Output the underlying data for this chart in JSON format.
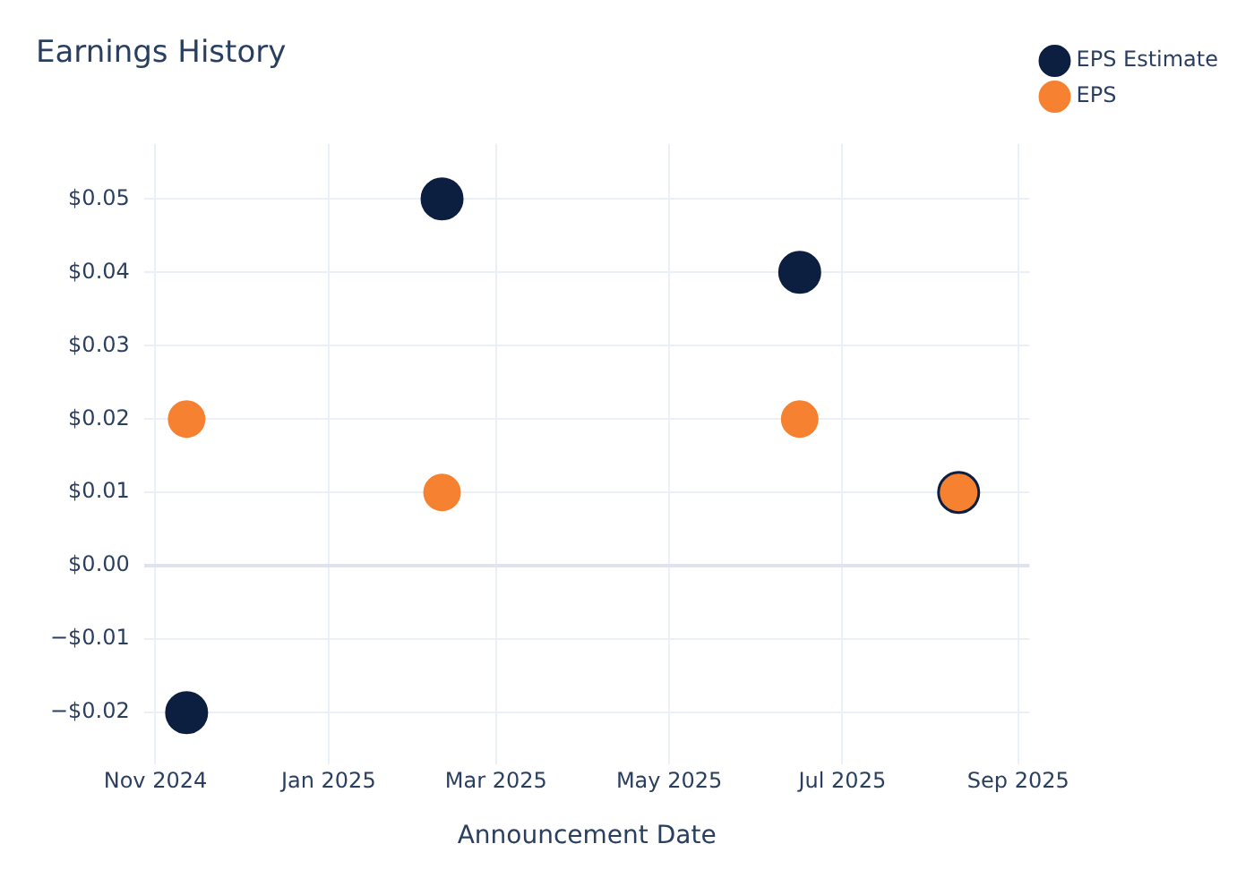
{
  "chart_data": {
    "type": "scatter",
    "title": "Earnings History",
    "xlabel": "Announcement Date",
    "x": [
      "2024-11-12",
      "2025-02-10",
      "2025-06-16",
      "2025-08-11"
    ],
    "series": [
      {
        "name": "EPS Estimate",
        "color": "#0d1f40",
        "values": [
          -0.02,
          0.05,
          0.04,
          0.01
        ]
      },
      {
        "name": "EPS",
        "color": "#f58131",
        "values": [
          0.02,
          0.01,
          0.02,
          0.01
        ]
      }
    ],
    "xlim": [
      "2024-10-28",
      "2025-09-05"
    ],
    "xticks": [
      {
        "value": "2024-11-01",
        "label": "Nov 2024"
      },
      {
        "value": "2025-01-01",
        "label": "Jan 2025"
      },
      {
        "value": "2025-03-01",
        "label": "Mar 2025"
      },
      {
        "value": "2025-05-01",
        "label": "May 2025"
      },
      {
        "value": "2025-07-01",
        "label": "Jul 2025"
      },
      {
        "value": "2025-09-01",
        "label": "Sep 2025"
      }
    ],
    "ylim": [
      -0.027,
      0.0575
    ],
    "yticks": [
      {
        "value": -0.02,
        "label": "−$0.02"
      },
      {
        "value": -0.01,
        "label": "−$0.01"
      },
      {
        "value": 0,
        "label": "$0.00"
      },
      {
        "value": 0.01,
        "label": "$0.01"
      },
      {
        "value": 0.02,
        "label": "$0.02"
      },
      {
        "value": 0.03,
        "label": "$0.03"
      },
      {
        "value": 0.04,
        "label": "$0.04"
      },
      {
        "value": 0.05,
        "label": "$0.05"
      }
    ],
    "grid": true,
    "legend": "top right",
    "marker": "circle"
  }
}
